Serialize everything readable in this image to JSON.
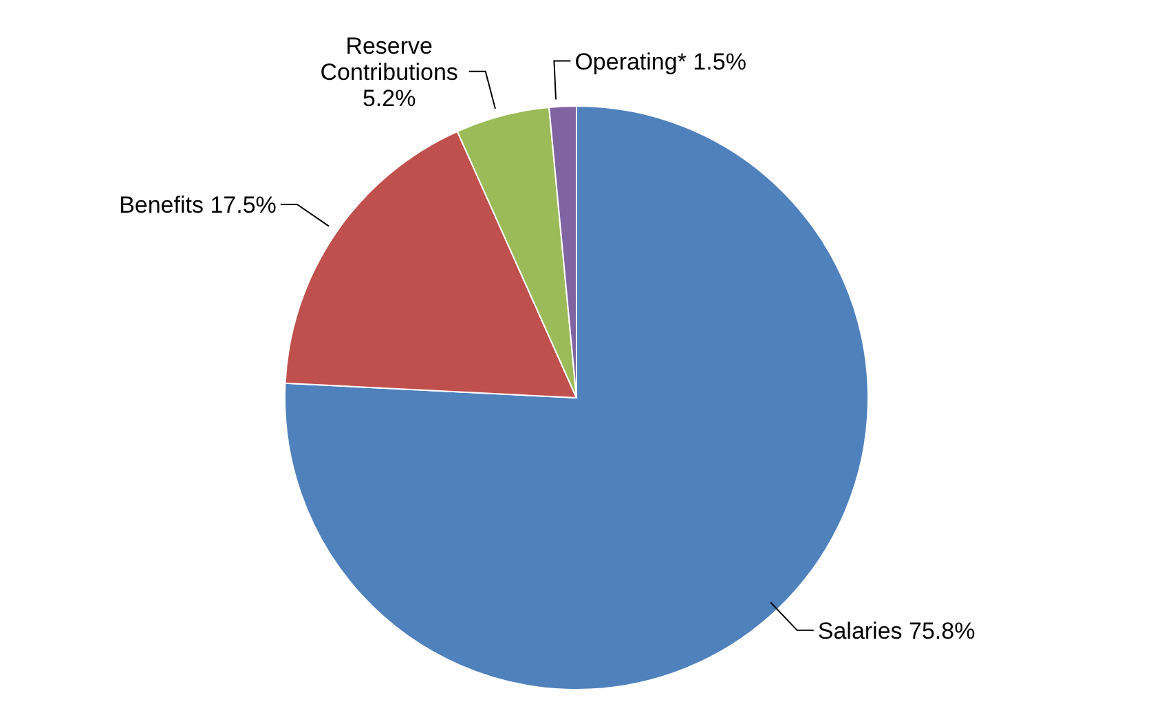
{
  "chart_data": {
    "type": "pie",
    "categories": [
      "Salaries",
      "Benefits",
      "Reserve Contributions",
      "Operating*"
    ],
    "values": [
      75.8,
      17.5,
      5.2,
      1.5
    ],
    "value_labels": [
      "75.8%",
      "17.5%",
      "5.2%",
      "1.5%"
    ],
    "colors": [
      "#4f81bd",
      "#c0504d",
      "#9bbb59",
      "#8064a2"
    ]
  }
}
